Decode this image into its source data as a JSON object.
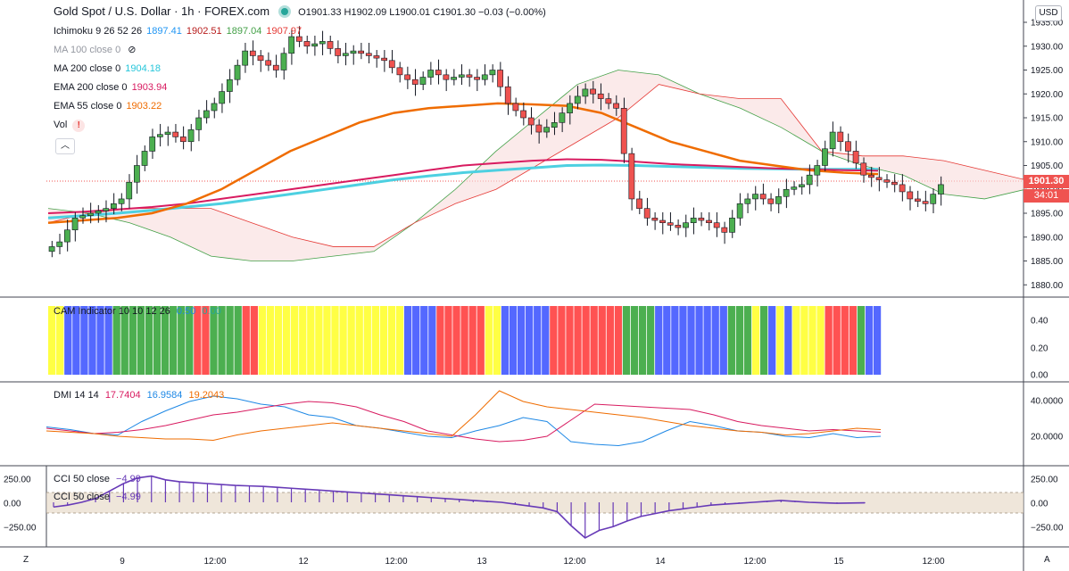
{
  "header": {
    "title": "Gold Spot / U.S. Dollar · 1h · FOREX.com",
    "ohlc": "O1901.33 H1902.09 L1900.01 C1901.30 −0.03 (−0.00%)"
  },
  "indicators": [
    {
      "label": "Ichimoku 9 26 52 26",
      "values": [
        {
          "v": "1897.41",
          "color": "#2196f3"
        },
        {
          "v": "1902.51",
          "color": "#b71c1c"
        },
        {
          "v": "1897.04",
          "color": "#43a047"
        },
        {
          "v": "1907.97",
          "color": "#e53935"
        }
      ]
    },
    {
      "label": "MA 100 close 0",
      "values": [],
      "hidden": true
    },
    {
      "label": "MA 200 close 0",
      "values": [
        {
          "v": "1904.18",
          "color": "#26c6da"
        }
      ]
    },
    {
      "label": "EMA 200 close 0",
      "values": [
        {
          "v": "1903.94",
          "color": "#d81b60"
        }
      ]
    },
    {
      "label": "EMA 55 close 0",
      "values": [
        {
          "v": "1903.22",
          "color": "#ef6c00"
        }
      ]
    },
    {
      "label": "Vol",
      "values": [],
      "warn": true
    }
  ],
  "collapse_icon": "chevron-up-icon",
  "currency": "USD",
  "last_price": "1901.30",
  "countdown": "34:01",
  "price_axis": {
    "ticks": [
      "1935.00",
      "1930.00",
      "1925.00",
      "1920.00",
      "1915.00",
      "1910.00",
      "1905.00",
      "1900.00",
      "1895.00",
      "1890.00",
      "1885.00",
      "1880.00"
    ]
  },
  "cam": {
    "label": "CAM Indicator 10 10 12 26",
    "v1": "0.50",
    "v2": "0.00",
    "ticks": [
      "0.40",
      "0.20",
      "0.00"
    ]
  },
  "dmi": {
    "label": "DMI 14 14",
    "v1": "17.7404",
    "v2": "16.9584",
    "v3": "19.2043",
    "ticks": [
      "40.0000",
      "20.0000"
    ]
  },
  "cci": {
    "label1": "CCI 50 close",
    "val1": "−4.99",
    "label2": "CCI 50 close",
    "val2": "−4.99",
    "ticks_left": [
      "250.00",
      "0.00",
      "−250.00"
    ],
    "ticks_right": [
      "250.00",
      "0.00",
      "−250.00"
    ]
  },
  "time_axis": [
    "9",
    "12:00",
    "12",
    "12:00",
    "13",
    "12:00",
    "14",
    "12:00",
    "15",
    "12:00"
  ],
  "colors": {
    "up": "#4caf50",
    "down": "#ef5350",
    "cam_yellow": "#ffff44",
    "cam_blue": "#5468ff",
    "cam_green": "#4caf50",
    "cam_red": "#ff5252",
    "cci": "#673ab7"
  },
  "chart_data": {
    "type": "candlestick",
    "symbol": "Gold Spot / U.S. Dollar",
    "ylim": [
      1880,
      1935
    ],
    "candles_close_approx": [
      1887,
      1889,
      1894,
      1895,
      1896,
      1898,
      1905,
      1911,
      1912,
      1910,
      1915,
      1918,
      1923,
      1929,
      1927,
      1925,
      1932,
      1930,
      1931,
      1928,
      1929,
      1928,
      1927,
      1924,
      1922,
      1925,
      1923,
      1924,
      1923,
      1925,
      1918,
      1915,
      1912,
      1914,
      1918,
      1921,
      1919,
      1917,
      1898,
      1894,
      1893,
      1892,
      1894,
      1893,
      1891,
      1897,
      1899,
      1897,
      1900,
      1901,
      1905,
      1912,
      1908,
      1903,
      1902,
      1901,
      1898,
      1897,
      1901
    ]
  }
}
